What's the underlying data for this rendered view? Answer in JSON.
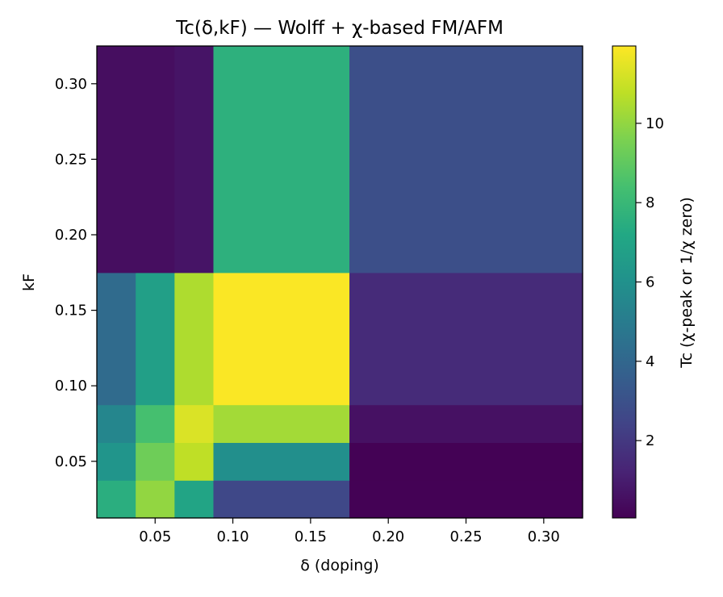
{
  "chart_data": {
    "type": "heatmap",
    "title": "Tc(δ,kF) — Wolff + χ-based FM/AFM",
    "xlabel": "δ (doping)",
    "ylabel": "kF",
    "colorbar_label": "Tc (χ-peak or 1/χ zero)",
    "colormap": "viridis",
    "x_edges": [
      0.0125,
      0.0375,
      0.0625,
      0.0875,
      0.175,
      0.325
    ],
    "y_edges": [
      0.0125,
      0.0375,
      0.0625,
      0.0875,
      0.175,
      0.325
    ],
    "xlim": [
      0.0125,
      0.325
    ],
    "ylim": [
      0.0125,
      0.325
    ],
    "x_ticks": [
      0.05,
      0.1,
      0.15,
      0.2,
      0.25,
      0.3
    ],
    "x_tick_labels": [
      "0.05",
      "0.10",
      "0.15",
      "0.20",
      "0.25",
      "0.30"
    ],
    "y_ticks": [
      0.05,
      0.1,
      0.15,
      0.2,
      0.25,
      0.3
    ],
    "y_tick_labels": [
      "0.05",
      "0.10",
      "0.15",
      "0.20",
      "0.25",
      "0.30"
    ],
    "values": [
      [
        7.5,
        10.0,
        7.0,
        2.6,
        0.1
      ],
      [
        6.2,
        9.3,
        10.8,
        5.9,
        0.1
      ],
      [
        5.5,
        8.4,
        11.3,
        10.3,
        0.6
      ],
      [
        4.2,
        6.7,
        10.5,
        11.9,
        1.5
      ],
      [
        0.5,
        0.5,
        0.7,
        7.6,
        2.9
      ]
    ],
    "color_range": [
      0.05,
      11.95
    ],
    "colorbar_ticks": [
      2,
      4,
      6,
      8,
      10
    ],
    "colorbar_tick_labels": [
      "2",
      "4",
      "6",
      "8",
      "10"
    ]
  }
}
